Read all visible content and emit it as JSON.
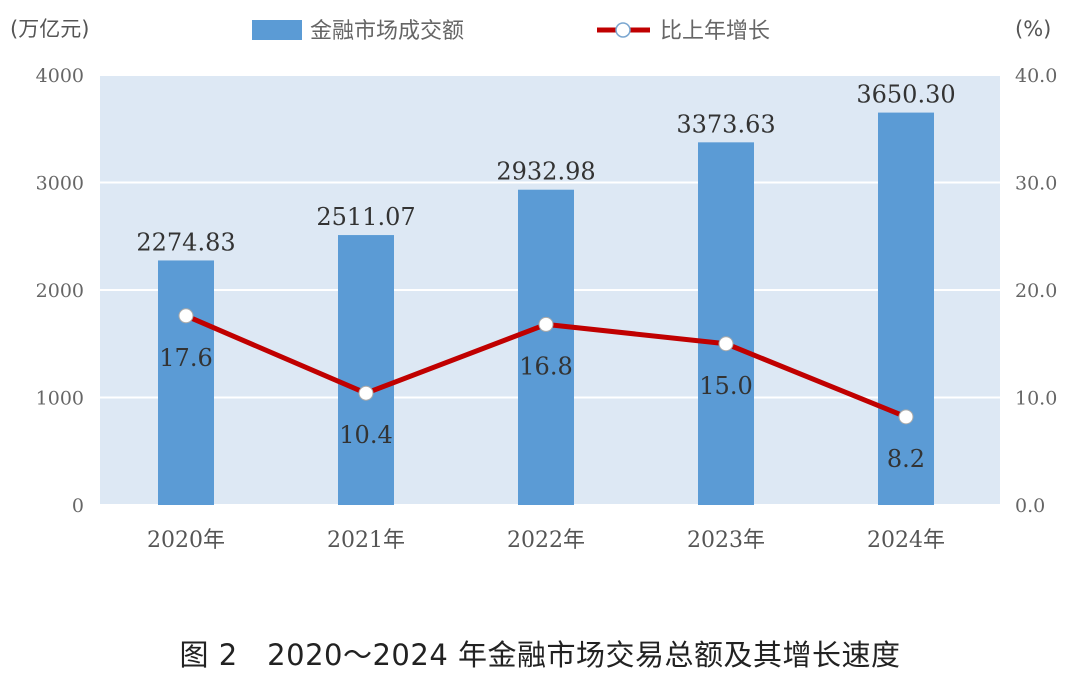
{
  "chart_data": {
    "type": "bar+line",
    "title": "图 2　2020～2024 年金融市场交易总额及其增长速度",
    "categories": [
      "2020年",
      "2021年",
      "2022年",
      "2023年",
      "2024年"
    ],
    "series": [
      {
        "name": "金融市场成交额",
        "type": "bar",
        "axis": "left",
        "values": [
          2274.83,
          2511.07,
          2932.98,
          3373.63,
          3650.3
        ],
        "labels": [
          "2274.83",
          "2511.07",
          "2932.98",
          "3373.63",
          "3650.30"
        ],
        "color": "#5b9bd5"
      },
      {
        "name": "比上年增长",
        "type": "line",
        "axis": "right",
        "values": [
          17.6,
          10.4,
          16.8,
          15.0,
          8.2
        ],
        "labels": [
          "17.6",
          "10.4",
          "16.8",
          "15.0",
          "8.2"
        ],
        "color": "#c00000"
      }
    ],
    "ylabel_left": "(万亿元)",
    "ylabel_right": "(%)",
    "ylim_left": [
      0,
      4000
    ],
    "ylim_right": [
      0,
      40
    ],
    "yticks_left": [
      "0",
      "1000",
      "2000",
      "3000",
      "4000"
    ],
    "yticks_right": [
      "0.0",
      "10.0",
      "20.0",
      "30.0",
      "40.0"
    ],
    "grid": true,
    "legend": "top-center",
    "background": "#dde8f4"
  }
}
